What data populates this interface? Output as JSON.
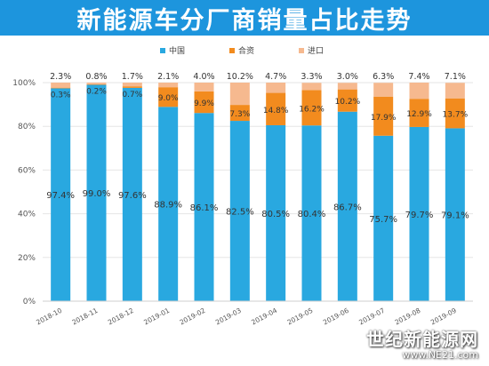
{
  "chart_data": {
    "type": "bar",
    "stacked": true,
    "title": "新能源车分厂商销量占比走势",
    "categories": [
      "2018-10",
      "2018-11",
      "2018-12",
      "2019-01",
      "2019-02",
      "2019-03",
      "2019-04",
      "2019-05",
      "2019-06",
      "2019-07",
      "2019-08",
      "2019-09"
    ],
    "series": [
      {
        "name": "中国",
        "color": "#29a8e0",
        "values": [
          97.4,
          99.0,
          97.6,
          88.9,
          86.1,
          82.5,
          80.5,
          80.4,
          86.7,
          75.7,
          79.7,
          79.1
        ],
        "labels": [
          "97.4%",
          "99.0%",
          "97.6%",
          "88.9%",
          "86.1%",
          "82.5%",
          "80.5%",
          "80.4%",
          "86.7%",
          "75.7%",
          "79.7%",
          "79.1%"
        ]
      },
      {
        "name": "合资",
        "color": "#f28b1e",
        "values": [
          0.3,
          0.2,
          0.7,
          9.0,
          9.9,
          7.3,
          14.8,
          16.2,
          10.2,
          17.9,
          12.9,
          13.7
        ],
        "labels": [
          "0.3%",
          "0.2%",
          "0.7%",
          "9.0%",
          "9.9%",
          "7.3%",
          "14.8%",
          "16.2%",
          "10.2%",
          "17.9%",
          "12.9%",
          "13.7%"
        ]
      },
      {
        "name": "进口",
        "color": "#f6b98f",
        "values": [
          2.3,
          0.8,
          1.7,
          2.1,
          4.0,
          10.2,
          4.7,
          3.3,
          3.0,
          6.3,
          7.4,
          7.1
        ],
        "labels": [
          "2.3%",
          "0.8%",
          "1.7%",
          "2.1%",
          "4.0%",
          "10.2%",
          "4.7%",
          "3.3%",
          "3.0%",
          "6.3%",
          "7.4%",
          "7.1%"
        ]
      }
    ],
    "yticks": [
      "0%",
      "20%",
      "40%",
      "60%",
      "80%",
      "100%"
    ],
    "ylim": [
      0,
      100
    ],
    "legend_position": "top-center",
    "xlabel": "",
    "ylabel": "",
    "grid": true
  },
  "watermark": {
    "site_name": "世纪新能源网",
    "url": "www.NE21.com"
  }
}
